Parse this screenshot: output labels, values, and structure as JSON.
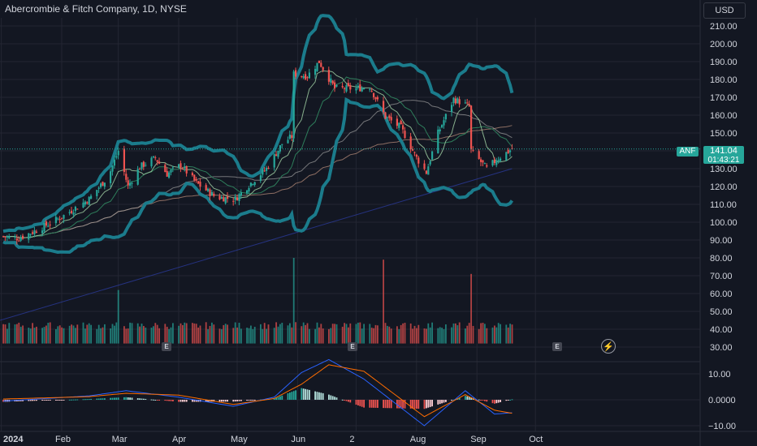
{
  "title": "Abercrombie & Fitch Company, 1D, NYSE",
  "currency": "USD",
  "symbol": "ANF",
  "last_price": "141.04",
  "countdown": "01:43:21",
  "price_axis_labels": [
    "210.00",
    "200.00",
    "190.00",
    "180.00",
    "170.00",
    "160.00",
    "150.00",
    "140.00",
    "130.00",
    "120.00",
    "110.00",
    "100.00",
    "90.00",
    "80.00",
    "70.00",
    "60.00",
    "50.00",
    "40.00",
    "30.00"
  ],
  "macd_axis_labels": [
    "10.00",
    "0.0000",
    "−10.00"
  ],
  "x_labels": [
    {
      "text": "2024",
      "bold": true
    },
    {
      "text": "Feb",
      "bold": false
    },
    {
      "text": "Mar",
      "bold": false
    },
    {
      "text": "Apr",
      "bold": false
    },
    {
      "text": "May",
      "bold": false
    },
    {
      "text": "Jun",
      "bold": false
    },
    {
      "text": "2",
      "bold": false
    },
    {
      "text": "Aug",
      "bold": false
    },
    {
      "text": "Sep",
      "bold": false
    },
    {
      "text": "Oct",
      "bold": false
    }
  ],
  "earnings_marker": "E",
  "colors": {
    "up": "#26a69a",
    "down": "#ef5350",
    "band": "#1b7c8c",
    "grid": "#232632",
    "bg": "#131722"
  },
  "chart_data": {
    "type": "candlestick",
    "title": "Abercrombie & Fitch Company, 1D, NYSE",
    "ylim": [
      30,
      215
    ],
    "last": 141.04,
    "grid": true,
    "anchors": [
      {
        "date": "2024-01-02",
        "close": 92
      },
      {
        "date": "2024-01-10",
        "close": 91
      },
      {
        "date": "2024-01-20",
        "close": 96
      },
      {
        "date": "2024-02-01",
        "close": 103
      },
      {
        "date": "2024-02-15",
        "close": 113
      },
      {
        "date": "2024-02-25",
        "close": 126
      },
      {
        "date": "2024-03-01",
        "close": 140
      },
      {
        "date": "2024-03-06",
        "close": 120
      },
      {
        "date": "2024-03-12",
        "close": 131
      },
      {
        "date": "2024-03-20",
        "close": 136
      },
      {
        "date": "2024-03-26",
        "close": 127
      },
      {
        "date": "2024-04-02",
        "close": 132
      },
      {
        "date": "2024-04-10",
        "close": 122
      },
      {
        "date": "2024-04-20",
        "close": 114
      },
      {
        "date": "2024-04-30",
        "close": 113
      },
      {
        "date": "2024-05-08",
        "close": 122
      },
      {
        "date": "2024-05-16",
        "close": 130
      },
      {
        "date": "2024-05-24",
        "close": 144
      },
      {
        "date": "2024-05-29",
        "close": 148
      },
      {
        "date": "2024-05-30",
        "close": 183
      },
      {
        "date": "2024-06-06",
        "close": 182
      },
      {
        "date": "2024-06-12",
        "close": 190
      },
      {
        "date": "2024-06-20",
        "close": 175
      },
      {
        "date": "2024-07-01",
        "close": 175
      },
      {
        "date": "2024-07-08",
        "close": 176
      },
      {
        "date": "2024-07-16",
        "close": 159
      },
      {
        "date": "2024-07-24",
        "close": 153
      },
      {
        "date": "2024-08-01",
        "close": 136
      },
      {
        "date": "2024-08-06",
        "close": 128
      },
      {
        "date": "2024-08-12",
        "close": 150
      },
      {
        "date": "2024-08-20",
        "close": 169
      },
      {
        "date": "2024-08-28",
        "close": 165
      },
      {
        "date": "2024-08-29",
        "close": 140
      },
      {
        "date": "2024-09-06",
        "close": 130
      },
      {
        "date": "2024-09-12",
        "close": 136
      },
      {
        "date": "2024-09-19",
        "close": 141.04
      }
    ],
    "volume_spikes_ylevel": [
      {
        "date": "2024-03-01",
        "value": 62
      },
      {
        "date": "2024-05-30",
        "value": 80
      },
      {
        "date": "2024-07-15",
        "value": 79
      },
      {
        "date": "2024-08-29",
        "value": 71
      }
    ],
    "indicators": [
      "Bollinger Bands",
      "SMA",
      "SMA",
      "SMA",
      "Volume",
      "MACD"
    ],
    "macd": [
      {
        "date": "2024-01-02",
        "macd": -0.5,
        "signal": 0.3
      },
      {
        "date": "2024-02-15",
        "macd": 1.5,
        "signal": 1.2
      },
      {
        "date": "2024-03-05",
        "macd": 3.5,
        "signal": 2.5
      },
      {
        "date": "2024-04-01",
        "macd": 1.0,
        "signal": 1.8
      },
      {
        "date": "2024-04-29",
        "macd": -2.5,
        "signal": -1.8
      },
      {
        "date": "2024-05-20",
        "macd": 1.0,
        "signal": 0.5
      },
      {
        "date": "2024-06-03",
        "macd": 10.5,
        "signal": 6.0
      },
      {
        "date": "2024-06-17",
        "macd": 15.5,
        "signal": 13.5
      },
      {
        "date": "2024-07-05",
        "macd": 8.0,
        "signal": 11.0
      },
      {
        "date": "2024-08-05",
        "macd": -10.0,
        "signal": -6.5
      },
      {
        "date": "2024-08-26",
        "macd": 3.5,
        "signal": 2.0
      },
      {
        "date": "2024-09-10",
        "macd": -5.5,
        "signal": -4.0
      },
      {
        "date": "2024-09-19",
        "macd": -5.0,
        "signal": -5.2
      }
    ]
  }
}
